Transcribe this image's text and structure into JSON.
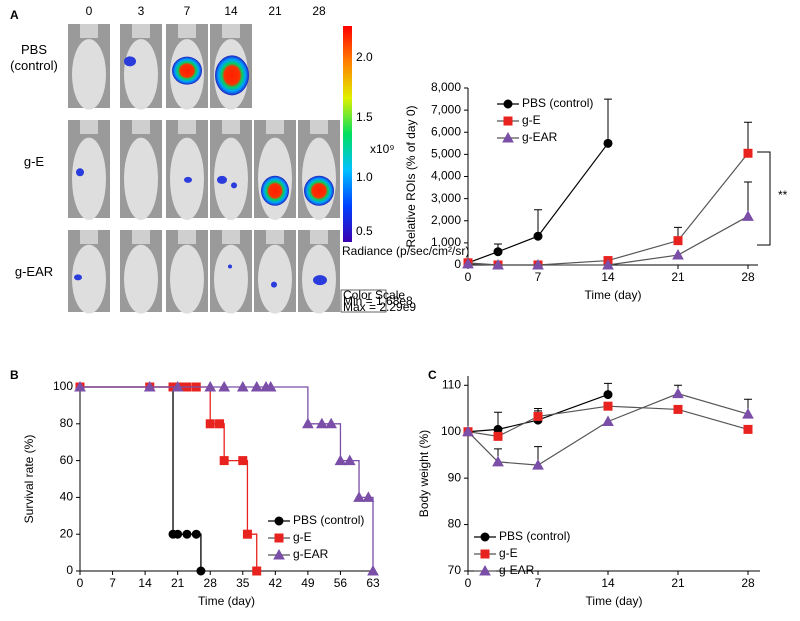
{
  "panel_labels": [
    "A",
    "B",
    "C"
  ],
  "imaging": {
    "time_labels": [
      "0",
      "3",
      "7",
      "14",
      "21",
      "28"
    ],
    "group_labels": [
      "PBS (control)",
      "g-E",
      "g-EAR"
    ],
    "colorbar": {
      "ticks": [
        "2.0",
        "1.5",
        "1.0",
        "0.5"
      ],
      "unit": "x10⁹",
      "label": "Radiance (p/sec/cm²/sr)",
      "scale_title": "Color Scale",
      "min": "Min = 1.68e8",
      "max": "Max = 2.29e9"
    }
  },
  "chart_data": [
    {
      "type": "line",
      "xlabel": "Time (day)",
      "ylabel": "Relative ROIs (% of day 0)",
      "x": [
        0,
        3,
        7,
        14,
        21,
        28
      ],
      "xlim": [
        0,
        29
      ],
      "ylim": [
        0,
        8000
      ],
      "xticks": [
        0,
        7,
        14,
        21,
        28
      ],
      "yticks": [
        0,
        {
          "value": 1000,
          "label": "1,000"
        },
        {
          "value": 2000,
          "label": "2,000"
        },
        {
          "value": 3000,
          "label": "3,000"
        },
        {
          "value": 4000,
          "label": "4,000"
        },
        {
          "value": 5000,
          "label": "5,000"
        },
        {
          "value": 6000,
          "label": "6,000"
        },
        {
          "value": 7000,
          "label": "7,000"
        },
        {
          "value": 8000,
          "label": "8,000"
        }
      ],
      "legend": "upper left",
      "annotation": "**",
      "series": [
        {
          "name": "PBS (control)",
          "color": "#000000",
          "marker": "circle",
          "values": [
            100,
            600,
            1300,
            5500,
            null,
            null
          ],
          "errors": [
            null,
            350,
            1200,
            2000,
            null,
            null
          ]
        },
        {
          "name": "g-E",
          "color": "#e8231f",
          "marker": "square",
          "values": [
            100,
            0,
            0,
            200,
            1100,
            5050
          ],
          "errors": [
            null,
            null,
            null,
            null,
            600,
            1400
          ]
        },
        {
          "name": "g-EAR",
          "color": "#7b4fa8",
          "marker": "triangle",
          "values": [
            50,
            0,
            0,
            0,
            450,
            2200
          ],
          "errors": [
            null,
            null,
            null,
            null,
            null,
            1550
          ]
        }
      ]
    },
    {
      "type": "step",
      "xlabel": "Time (day)",
      "ylabel": "Survival rate (%)",
      "xlim": [
        0,
        63
      ],
      "ylim": [
        0,
        100
      ],
      "xticks": [
        0,
        7,
        14,
        21,
        28,
        35,
        42,
        49,
        56,
        63
      ],
      "yticks": [
        0,
        20,
        40,
        60,
        80,
        100
      ],
      "legend": "lower right",
      "series": [
        {
          "name": "PBS (control)",
          "color": "#000000",
          "marker": "circle",
          "x": [
            0,
            20,
            21,
            23,
            25,
            26
          ],
          "values": [
            100,
            20,
            20,
            20,
            20,
            0
          ]
        },
        {
          "name": "g-E",
          "color": "#e8231f",
          "marker": "square",
          "x": [
            0,
            15,
            20,
            21,
            22,
            23,
            25,
            28,
            30,
            31,
            35,
            36,
            38
          ],
          "values": [
            100,
            100,
            100,
            100,
            100,
            100,
            100,
            80,
            80,
            60,
            60,
            20,
            0
          ]
        },
        {
          "name": "g-EAR",
          "color": "#7b4fa8",
          "marker": "triangle",
          "x": [
            0,
            15,
            21,
            28,
            31,
            35,
            38,
            40,
            41,
            49,
            52,
            54,
            56,
            58,
            60,
            62,
            63
          ],
          "values": [
            100,
            100,
            100,
            100,
            100,
            100,
            100,
            100,
            100,
            80,
            80,
            80,
            60,
            60,
            40,
            40,
            0
          ]
        }
      ]
    },
    {
      "type": "line",
      "xlabel": "Time (day)",
      "ylabel": "Body weight (%)",
      "x": [
        0,
        3,
        7,
        14,
        21,
        28
      ],
      "xlim": [
        0,
        29.2
      ],
      "ylim": [
        70,
        112
      ],
      "xticks": [
        0,
        7,
        14,
        21,
        28
      ],
      "yticks": [
        70,
        80,
        90,
        100,
        110
      ],
      "legend": "lower left",
      "series": [
        {
          "name": "PBS (control)",
          "color": "#000000",
          "marker": "circle",
          "values": [
            100,
            100.5,
            102.5,
            108,
            null,
            null
          ],
          "errors": [
            null,
            3.7,
            2,
            2.4,
            null,
            null
          ]
        },
        {
          "name": "g-E",
          "color": "#e8231f",
          "marker": "square",
          "values": [
            100,
            99,
            103.3,
            105.5,
            104.8,
            100.5
          ],
          "errors": [
            null,
            null,
            1.7,
            null,
            null,
            null
          ]
        },
        {
          "name": "g-EAR",
          "color": "#7b4fa8",
          "marker": "triangle",
          "values": [
            100,
            93.5,
            92.8,
            102.2,
            108.2,
            103.8
          ],
          "errors": [
            null,
            2.8,
            4,
            null,
            1.8,
            3.2
          ]
        }
      ]
    }
  ]
}
